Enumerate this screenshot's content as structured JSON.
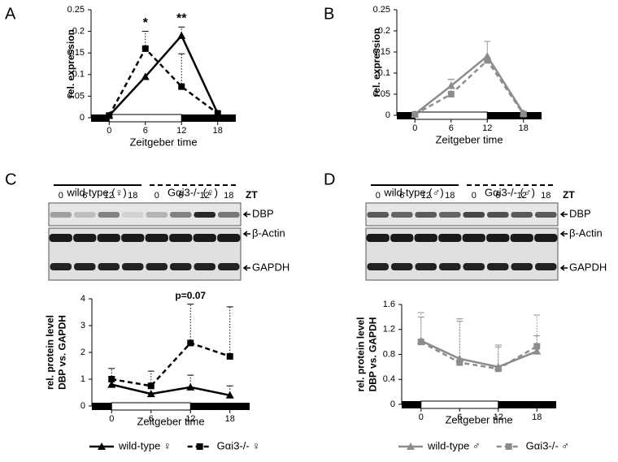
{
  "panels": [
    "A",
    "B",
    "C",
    "D"
  ],
  "blots": [
    {
      "groups": [
        "wild-type (♀)",
        "Gαi3-/- (♀)"
      ],
      "lanes": [
        "0",
        "6",
        "12",
        "18",
        "0",
        "6",
        "12",
        "18"
      ],
      "zt": "ZT",
      "bands": [
        "DBP",
        "β-Actin",
        "GAPDH"
      ]
    },
    {
      "groups": [
        "wild-type (♂)",
        "Gαi3-/- (♂)"
      ],
      "lanes": [
        "0",
        "6",
        "12",
        "18",
        "0",
        "6",
        "12",
        "18"
      ],
      "zt": "ZT",
      "bands": [
        "DBP",
        "β-Actin",
        "GAPDH"
      ]
    }
  ],
  "chart_data": [
    {
      "type": "line",
      "ylabel": [
        "rel. expression"
      ],
      "xlabel": "Zeitgeber time",
      "x": [
        0,
        6,
        12,
        18
      ],
      "xlim": [
        -3,
        21
      ],
      "xticks": [
        0,
        6,
        12,
        18
      ],
      "ylim": [
        0,
        0.25
      ],
      "yticks": [
        0,
        0.05,
        0.1,
        0.15,
        0.2,
        0.25
      ],
      "annotations": [
        {
          "text": "*",
          "x": 6
        },
        {
          "text": "**",
          "x": 12
        }
      ],
      "series": [
        {
          "color": "#000000",
          "marker": "triangle",
          "line_style": "solid",
          "values": [
            0.005,
            0.095,
            0.19,
            0.01
          ],
          "errors": [
            null,
            null,
            0.02,
            null
          ]
        },
        {
          "color": "#000000",
          "marker": "square",
          "line_style": "dashed",
          "values": [
            0.005,
            0.16,
            0.072,
            0.01
          ],
          "errors": [
            null,
            0.04,
            0.076,
            null
          ]
        }
      ]
    },
    {
      "type": "line",
      "ylabel": [
        "rel. expression"
      ],
      "xlabel": "Zeitgeber time",
      "x": [
        0,
        6,
        12,
        18
      ],
      "xlim": [
        -3,
        21
      ],
      "xticks": [
        0,
        6,
        12,
        18
      ],
      "ylim": [
        0,
        0.25
      ],
      "yticks": [
        0,
        0.05,
        0.1,
        0.15,
        0.2,
        0.25
      ],
      "series": [
        {
          "color": "#8c8c8c",
          "marker": "triangle",
          "line_style": "solid",
          "values": [
            0.003,
            0.07,
            0.14,
            0.005
          ],
          "errors": [
            null,
            0.015,
            0.035,
            null
          ]
        },
        {
          "color": "#8c8c8c",
          "marker": "square",
          "line_style": "dashed",
          "values": [
            0.002,
            0.05,
            0.13,
            0.003
          ],
          "errors": [
            null,
            0.035,
            0.045,
            null
          ]
        }
      ]
    },
    {
      "type": "line",
      "ylabel": [
        "rel. protein level",
        "DBP vs. GAPDH"
      ],
      "xlabel": "Zeitgeber time",
      "x": [
        0,
        6,
        12,
        18
      ],
      "xlim": [
        -3,
        21
      ],
      "xticks": [
        0,
        6,
        12,
        18
      ],
      "ylim": [
        0,
        4
      ],
      "yticks": [
        0,
        1,
        2,
        3,
        4
      ],
      "legend": "bottom",
      "annotations": [
        {
          "text": "p=0.07",
          "x": 12
        }
      ],
      "series": [
        {
          "name": "wild-type ♀",
          "color": "#000000",
          "marker": "triangle",
          "line_style": "solid",
          "values": [
            0.8,
            0.45,
            0.7,
            0.4
          ],
          "errors": [
            0.3,
            null,
            0.45,
            0.35
          ]
        },
        {
          "name": "Gαi3-/- ♀",
          "color": "#000000",
          "marker": "square",
          "line_style": "dashed",
          "values": [
            1.0,
            0.75,
            2.35,
            1.85
          ],
          "errors": [
            0.4,
            0.55,
            1.45,
            1.85
          ]
        }
      ]
    },
    {
      "type": "line",
      "ylabel": [
        "rel. protein level",
        "DBP vs. GAPDH"
      ],
      "xlabel": "Zeitgeber time",
      "x": [
        0,
        6,
        12,
        18
      ],
      "xlim": [
        -3,
        21
      ],
      "xticks": [
        0,
        6,
        12,
        18
      ],
      "ylim": [
        0,
        1.6
      ],
      "yticks": [
        0,
        0.4,
        0.8,
        1.2,
        1.6
      ],
      "legend": "bottom",
      "series": [
        {
          "name": "wild-type ♂",
          "color": "#8c8c8c",
          "marker": "triangle",
          "line_style": "solid",
          "values": [
            1.02,
            0.73,
            0.6,
            0.85
          ],
          "errors": [
            0.45,
            0.6,
            0.35,
            0.25
          ]
        },
        {
          "name": "Gαi3-/- ♂",
          "color": "#8c8c8c",
          "marker": "square",
          "line_style": "dashed",
          "values": [
            1.0,
            0.67,
            0.57,
            0.93
          ],
          "errors": [
            0.4,
            0.7,
            0.35,
            0.5
          ]
        }
      ]
    }
  ]
}
